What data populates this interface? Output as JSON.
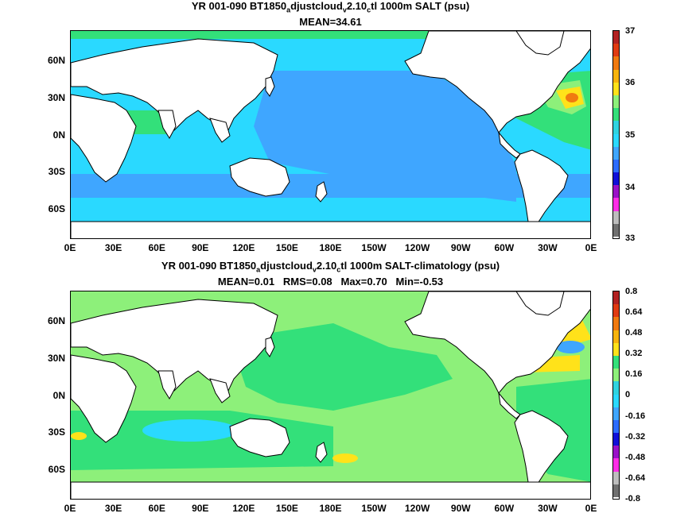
{
  "panels": [
    {
      "title_parts": [
        "YR 001-090 BT1850",
        "a",
        "djustcloud",
        "v",
        "2.10",
        "c",
        "tl 1000m SALT (psu)"
      ],
      "stats": "MEAN=34.61",
      "colorbar_labels": [
        "37",
        "36",
        "35",
        "34",
        "33"
      ],
      "colorbar_colors": [
        "#b22222",
        "#e03b12",
        "#f07a10",
        "#f7b40d",
        "#ffe21a",
        "#8df07a",
        "#33e07a",
        "#2fd3e0",
        "#2ad9ff",
        "#3fa6ff",
        "#2c6cff",
        "#1010d8",
        "#9a12c8",
        "#ff2ee6",
        "#bdbdbd",
        "#707070"
      ],
      "mean_value": 34.61
    },
    {
      "title_parts": [
        "YR 001-090 BT1850",
        "a",
        "djustcloud",
        "v",
        "2.10",
        "c",
        "tl 1000m SALT-climatology (psu)"
      ],
      "stats": "MEAN=0.01   RMS=0.08   Max=0.70   Min=-0.53",
      "colorbar_labels": [
        "0.8",
        "0.64",
        "0.48",
        "0.32",
        "0.16",
        "0",
        "-0.16",
        "-0.32",
        "-0.48",
        "-0.64",
        "-0.8"
      ],
      "colorbar_colors": [
        "#b22222",
        "#e03b12",
        "#f07a10",
        "#f7b40d",
        "#ffe21a",
        "#33e07a",
        "#8df07a",
        "#2fd3e0",
        "#2ad9ff",
        "#3fa6ff",
        "#2c6cff",
        "#1010d8",
        "#9a12c8",
        "#ff2ee6",
        "#bdbdbd",
        "#707070"
      ],
      "mean_value": 0.01
    }
  ],
  "lat_ticks": [
    "60N",
    "30N",
    "0N",
    "30S",
    "60S"
  ],
  "lon_ticks": [
    "0E",
    "30E",
    "60E",
    "90E",
    "120E",
    "150E",
    "180E",
    "150W",
    "120W",
    "90W",
    "60W",
    "30W",
    "0E"
  ],
  "ocean_colors": {
    "top_cyan": "#2ad9ff",
    "top_blue": "#3fa6ff",
    "top_green": "#33e07a",
    "top_lightgreen": "#8df07a",
    "top_yellow": "#ffe21a",
    "top_orange": "#f07a10",
    "bottom_lightgreen": "#8df07a",
    "bottom_green": "#33e07a",
    "bottom_cyan": "#2ad9ff",
    "bottom_yellow": "#ffe21a",
    "bottom_blue": "#3fa6ff"
  }
}
